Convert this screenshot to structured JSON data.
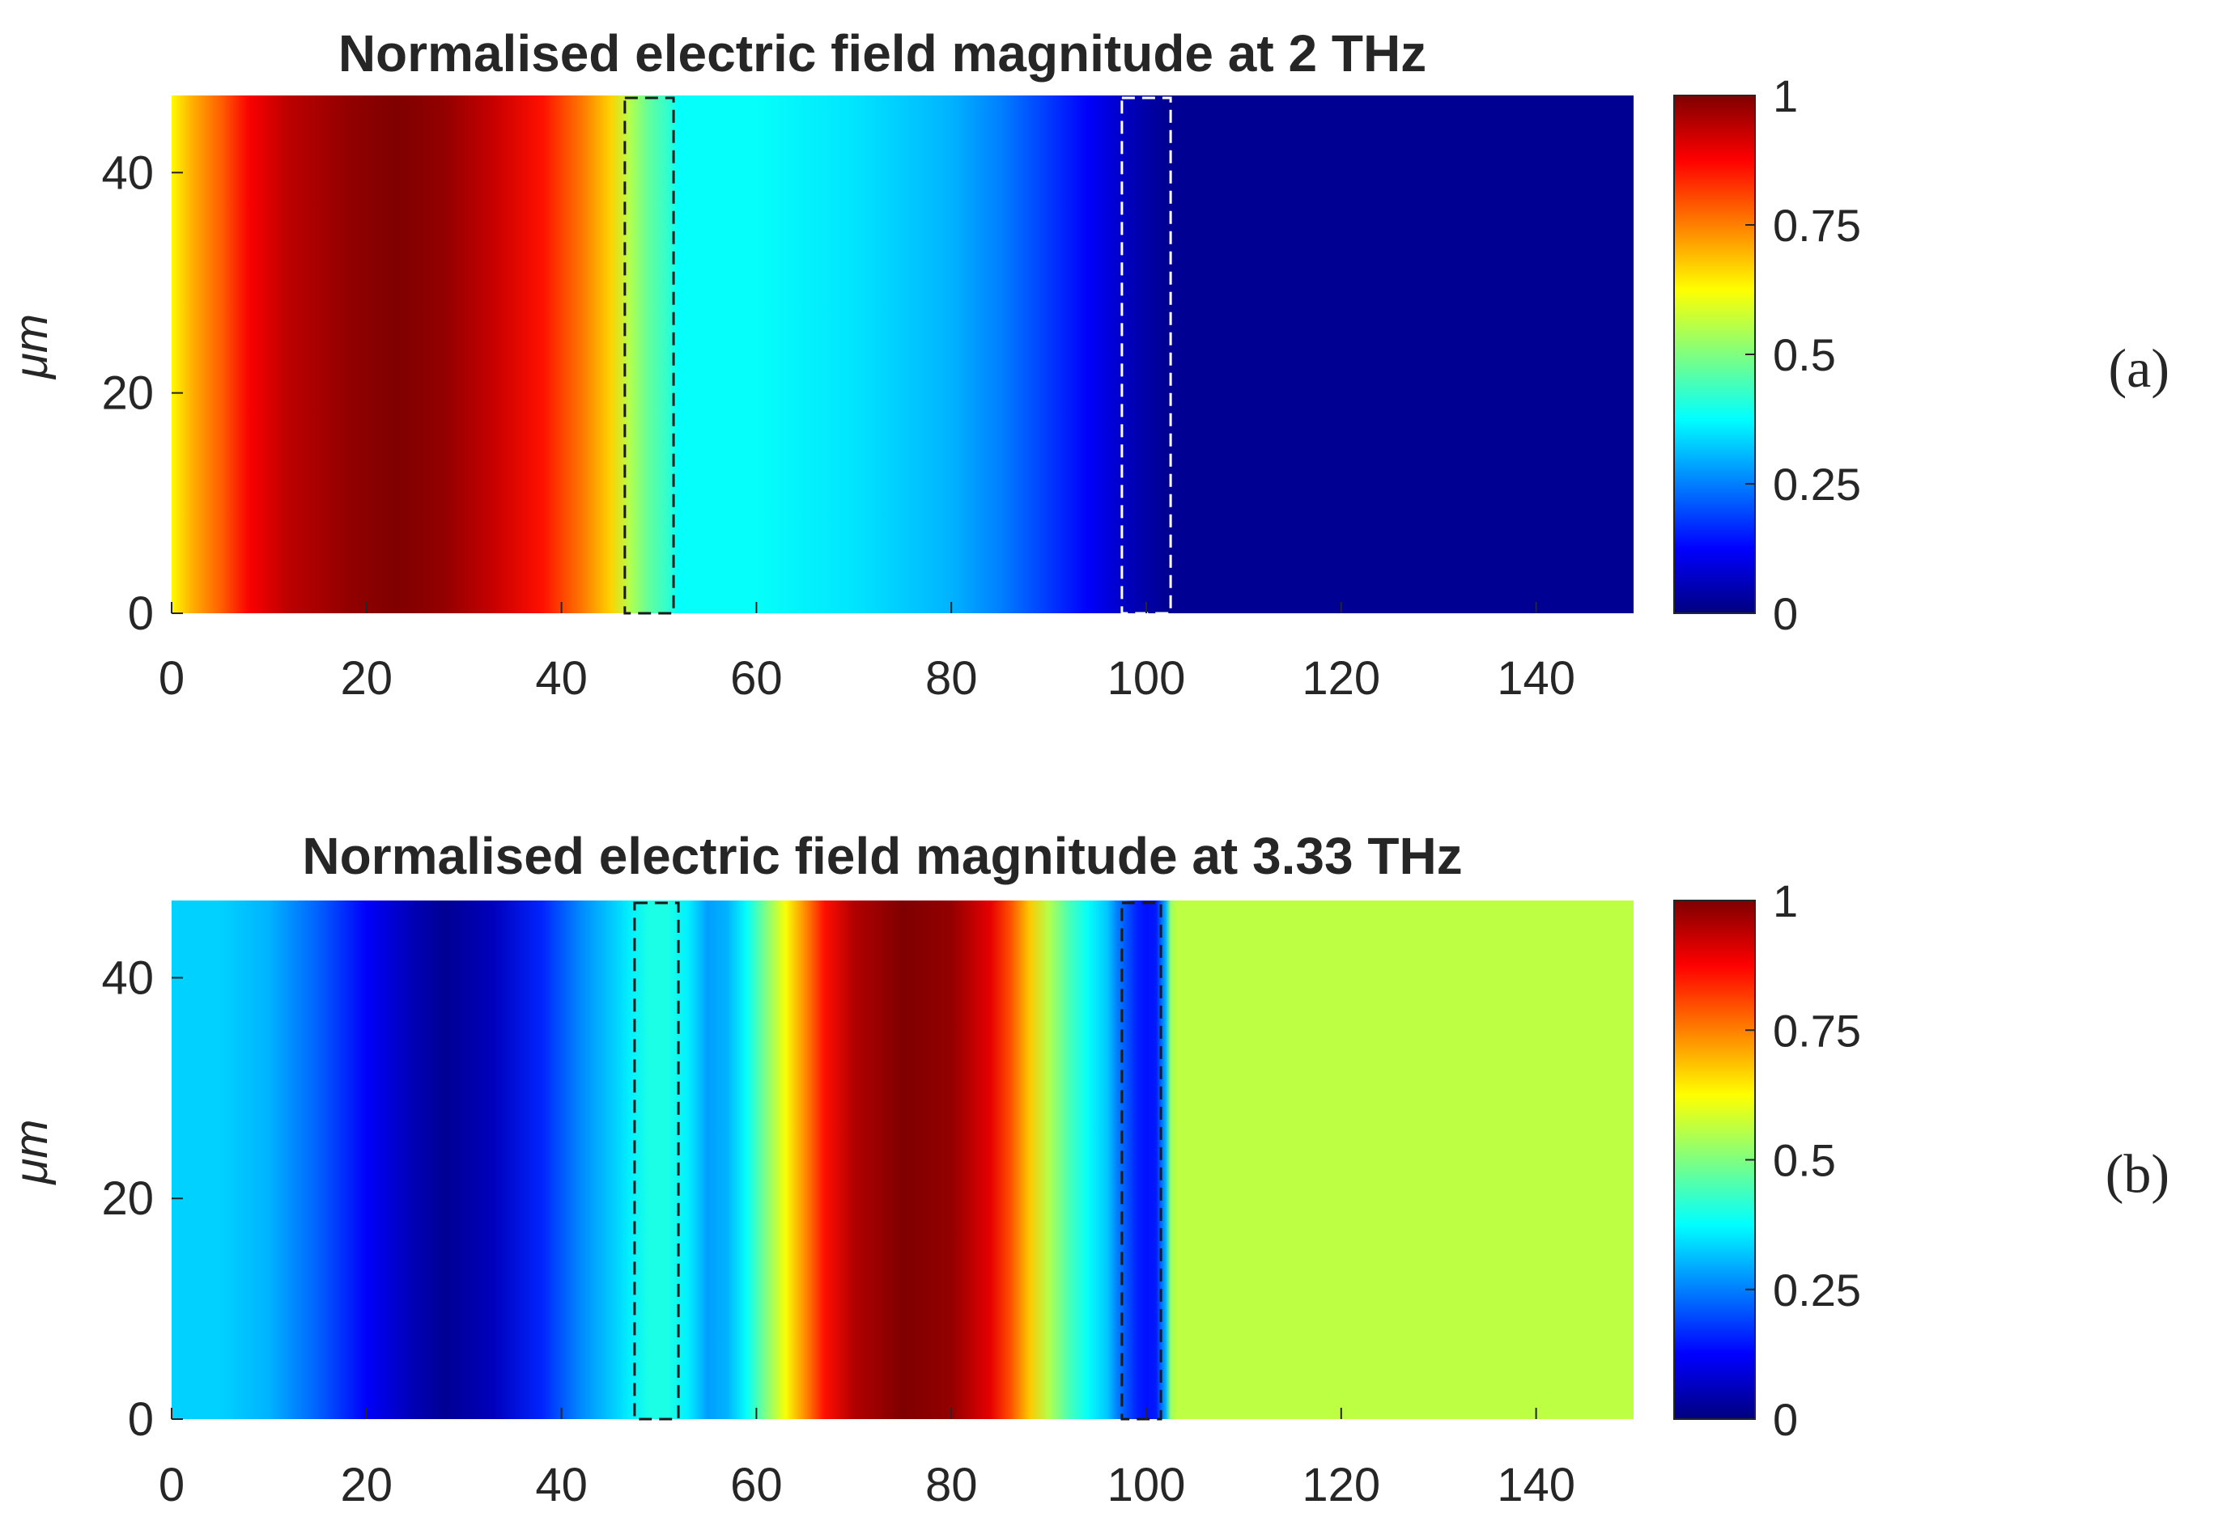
{
  "figure": {
    "panel_labels": [
      "(a)",
      "(b)"
    ]
  },
  "colormap": {
    "name": "jet",
    "stops": [
      {
        "v": 0.0,
        "color": "#00007f"
      },
      {
        "v": 0.125,
        "color": "#0000ff"
      },
      {
        "v": 0.375,
        "color": "#00ffff"
      },
      {
        "v": 0.625,
        "color": "#ffff00"
      },
      {
        "v": 0.875,
        "color": "#ff0000"
      },
      {
        "v": 1.0,
        "color": "#7f0000"
      }
    ]
  },
  "chart_data": [
    {
      "type": "heatmap",
      "title": "Normalised electric field magnitude at 2 THz",
      "xlabel": "",
      "ylabel": "μm",
      "panel_label": "(a)",
      "xlim": [
        0,
        150
      ],
      "ylim": [
        0,
        47
      ],
      "xticks": [
        0,
        20,
        40,
        60,
        80,
        100,
        120,
        140
      ],
      "yticks": [
        0,
        20,
        40
      ],
      "colorbar": {
        "clim": [
          0,
          1
        ],
        "ticks": [
          0,
          0.25,
          0.5,
          0.75,
          1
        ],
        "tick_labels": [
          "0",
          "0.25",
          "0.5",
          "0.75",
          "1"
        ]
      },
      "field_profile": {
        "x": [
          0,
          2,
          5,
          8,
          12,
          18,
          23,
          28,
          33,
          38,
          42,
          45,
          47,
          49,
          51,
          52,
          60,
          70,
          80,
          85,
          90,
          94,
          97,
          98,
          100,
          102,
          104,
          110,
          130,
          150
        ],
        "value": [
          0.63,
          0.7,
          0.78,
          0.88,
          0.94,
          0.98,
          1.0,
          0.98,
          0.93,
          0.86,
          0.76,
          0.67,
          0.55,
          0.47,
          0.42,
          0.38,
          0.38,
          0.35,
          0.3,
          0.25,
          0.18,
          0.12,
          0.08,
          0.06,
          0.04,
          0.02,
          0.02,
          0.02,
          0.02,
          0.02
        ]
      },
      "regions": [
        {
          "x0": 46.5,
          "x1": 51.5,
          "style": "black-dashed"
        },
        {
          "x0": 97.5,
          "x1": 102.5,
          "style": "white-dashed"
        }
      ]
    },
    {
      "type": "heatmap",
      "title": "Normalised electric field magnitude at 3.33 THz",
      "xlabel": "",
      "ylabel": "μm",
      "panel_label": "(b)",
      "xlim": [
        0,
        150
      ],
      "ylim": [
        0,
        47
      ],
      "xticks": [
        0,
        20,
        40,
        60,
        80,
        100,
        120,
        140
      ],
      "yticks": [
        0,
        20,
        40
      ],
      "colorbar": {
        "clim": [
          0,
          1
        ],
        "ticks": [
          0,
          0.25,
          0.5,
          0.75,
          1
        ],
        "tick_labels": [
          "0",
          "0.25",
          "0.5",
          "0.75",
          "1"
        ]
      },
      "field_profile": {
        "x": [
          0,
          5,
          10,
          15,
          20,
          25,
          28,
          33,
          38,
          42,
          45,
          47,
          49,
          51,
          53,
          55,
          57,
          59,
          61,
          63,
          65,
          67,
          70,
          75,
          80,
          84,
          86,
          88,
          90,
          92,
          94,
          96,
          97,
          99,
          100,
          101,
          102,
          102.5,
          103,
          150
        ],
        "value": [
          0.33,
          0.33,
          0.3,
          0.22,
          0.12,
          0.05,
          0.02,
          0.06,
          0.16,
          0.26,
          0.32,
          0.36,
          0.4,
          0.4,
          0.36,
          0.28,
          0.3,
          0.38,
          0.5,
          0.62,
          0.74,
          0.86,
          0.95,
          1.0,
          0.98,
          0.9,
          0.8,
          0.68,
          0.55,
          0.45,
          0.38,
          0.32,
          0.25,
          0.16,
          0.14,
          0.15,
          0.3,
          0.52,
          0.56,
          0.56
        ]
      },
      "regions": [
        {
          "x0": 47.5,
          "x1": 52.0,
          "style": "black-dashed"
        },
        {
          "x0": 97.5,
          "x1": 101.5,
          "style": "black-dashed"
        }
      ]
    }
  ]
}
